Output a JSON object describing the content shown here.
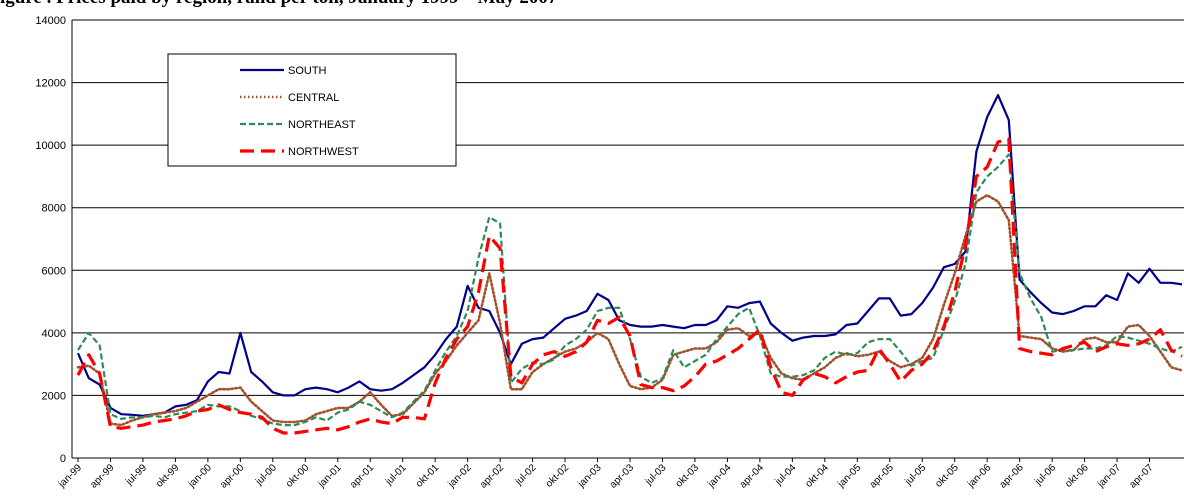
{
  "chart_data": {
    "type": "line",
    "title": "igure  . Prices paid by region, rand per ton, January 1999 – May 2007",
    "xlabel": "",
    "ylabel": "",
    "ylim": [
      0,
      14000
    ],
    "yticks": [
      0,
      2000,
      4000,
      6000,
      8000,
      10000,
      12000,
      14000
    ],
    "grid": true,
    "legend_position": "top-left",
    "x_tick_labels": [
      "jan-99",
      "apr-99",
      "jul-99",
      "okt-99",
      "jan-00",
      "apr-00",
      "jul-00",
      "okt-00",
      "jan-01",
      "apr-01",
      "jul-01",
      "okt-01",
      "jan-02",
      "apr-02",
      "jul-02",
      "okt-02",
      "jan-03",
      "apr-03",
      "jul-03",
      "okt-03",
      "jan-04",
      "apr-04",
      "jul-04",
      "okt-04",
      "jan-05",
      "apr-05",
      "jul-05",
      "okt-05",
      "jan-06",
      "apr-06",
      "jul-06",
      "okt-06",
      "jan-07",
      "apr-07"
    ],
    "series": [
      {
        "name": "SOUTH",
        "color": "#00008B",
        "dash": "solid",
        "values": [
          3350,
          2550,
          2350,
          1600,
          1400,
          1380,
          1350,
          1400,
          1450,
          1650,
          1700,
          1850,
          2450,
          2750,
          2700,
          4000,
          2750,
          2450,
          2100,
          2000,
          2000,
          2200,
          2250,
          2200,
          2100,
          2250,
          2450,
          2200,
          2150,
          2200,
          2400,
          2650,
          2900,
          3300,
          3800,
          4200,
          5500,
          4800,
          4700,
          4000,
          3000,
          3650,
          3800,
          3850,
          4150,
          4450,
          4550,
          4700,
          5250,
          5050,
          4400,
          4250,
          4200,
          4200,
          4250,
          4200,
          4150,
          4250,
          4250,
          4400,
          4850,
          4800,
          4950,
          5000,
          4300,
          4000,
          3750,
          3850,
          3900,
          3900,
          3950,
          4250,
          4300,
          4700,
          5100,
          5100,
          4550,
          4600,
          4950,
          5450,
          6100,
          6200,
          6600,
          9800,
          10900,
          11600,
          10800,
          5700,
          5300,
          4950,
          4650,
          4600,
          4700,
          4850,
          4850,
          5200,
          5050,
          5900,
          5600,
          6050,
          5600,
          5600,
          5550
        ]
      },
      {
        "name": "CENTRAL",
        "color": "#A0522D",
        "dash": "dotted",
        "values": [
          2900,
          2950,
          2700,
          1100,
          1050,
          1200,
          1300,
          1400,
          1450,
          1500,
          1600,
          1800,
          2000,
          2200,
          2200,
          2250,
          1800,
          1500,
          1200,
          1150,
          1150,
          1200,
          1400,
          1500,
          1600,
          1600,
          1800,
          2100,
          1700,
          1350,
          1400,
          1750,
          2100,
          2700,
          3100,
          3600,
          4000,
          4400,
          5900,
          4300,
          2200,
          2200,
          2750,
          3000,
          3200,
          3400,
          3500,
          3700,
          4000,
          3800,
          3000,
          2300,
          2200,
          2250,
          2500,
          3300,
          3400,
          3500,
          3500,
          3700,
          4100,
          4150,
          3900,
          4000,
          3200,
          2700,
          2550,
          2500,
          2700,
          2900,
          3200,
          3350,
          3250,
          3300,
          3400,
          3100,
          2900,
          3000,
          3200,
          3800,
          4900,
          5900,
          7100,
          8200,
          8400,
          8200,
          7600,
          3900,
          3850,
          3800,
          3500,
          3400,
          3450,
          3800,
          3850,
          3700,
          3700,
          4200,
          4250,
          3900,
          3400,
          2900,
          2800
        ]
      },
      {
        "name": "NORTHEAST",
        "color": "#2E8B57",
        "dash": "dashed",
        "values": [
          3450,
          4000,
          3600,
          1400,
          1250,
          1300,
          1300,
          1350,
          1300,
          1400,
          1450,
          1500,
          1700,
          1650,
          1650,
          1500,
          1350,
          1250,
          1100,
          1050,
          1050,
          1150,
          1300,
          1200,
          1450,
          1550,
          1800,
          1700,
          1500,
          1300,
          1450,
          1800,
          2150,
          2800,
          3400,
          3900,
          4700,
          6400,
          7700,
          7500,
          2400,
          2850,
          3050,
          3000,
          3150,
          3600,
          3800,
          4100,
          4700,
          4800,
          4800,
          3800,
          2600,
          2400,
          2550,
          3450,
          2900,
          3100,
          3300,
          3800,
          4200,
          4600,
          4800,
          3900,
          2700,
          2600,
          2600,
          2650,
          2800,
          3200,
          3400,
          3300,
          3350,
          3700,
          3800,
          3800,
          3400,
          2950,
          3100,
          3200,
          4100,
          5000,
          6200,
          8500,
          9000,
          9300,
          9700,
          5900,
          5100,
          4500,
          3400,
          3450,
          3450,
          3500,
          3500,
          3600,
          3900,
          3850,
          3750,
          3650,
          3500,
          3400,
          3550
        ]
      },
      {
        "name": "NORTHWEST",
        "color": "#FF0000",
        "dash": "longdash",
        "values": [
          2650,
          3300,
          2700,
          1000,
          950,
          1000,
          1050,
          1150,
          1200,
          1250,
          1350,
          1500,
          1550,
          1700,
          1550,
          1450,
          1400,
          1300,
          950,
          800,
          800,
          850,
          900,
          950,
          900,
          1000,
          1150,
          1250,
          1150,
          1100,
          1300,
          1300,
          1250,
          2400,
          3200,
          3800,
          4200,
          5300,
          7100,
          6700,
          2600,
          2400,
          3000,
          3300,
          3400,
          3250,
          3400,
          3700,
          4400,
          4300,
          4500,
          3900,
          2350,
          2250,
          2250,
          2150,
          2300,
          2600,
          3000,
          3100,
          3300,
          3500,
          3800,
          4100,
          2900,
          2100,
          2000,
          2500,
          2700,
          2600,
          2400,
          2600,
          2750,
          2800,
          3500,
          3000,
          2450,
          2800,
          3000,
          3400,
          4200,
          5300,
          6800,
          9000,
          9300,
          10100,
          10200,
          3500,
          3400,
          3350,
          3300,
          3500,
          3600,
          3700,
          3400,
          3550,
          3650,
          3600,
          3650,
          3800,
          4100,
          3450,
          3250
        ]
      }
    ]
  }
}
